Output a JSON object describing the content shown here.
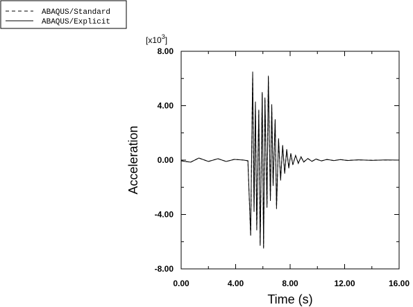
{
  "chart_data": {
    "type": "line",
    "xlabel": "Time (s)",
    "ylabel": "Acceleration",
    "y_multiplier_base": "[x10",
    "y_multiplier_exp": "3",
    "y_multiplier_close": "]",
    "xlim": [
      0,
      16
    ],
    "ylim": [
      -8,
      8
    ],
    "x_ticks": [
      0,
      4,
      8,
      12,
      16
    ],
    "x_tick_labels": [
      "0.00",
      "4.00",
      "8.00",
      "12.00",
      "16.00"
    ],
    "y_ticks": [
      8,
      4,
      0,
      -4,
      -8
    ],
    "y_tick_labels": [
      "8.00",
      "4.00",
      "0.00",
      "-4.00",
      "-8.00"
    ],
    "grid": false,
    "legend_position": "top-left",
    "series": [
      {
        "name": "ABAQUS/Standard",
        "style": "dashed",
        "x": [
          0,
          0.3,
          0.7,
          1.3,
          2.0,
          2.7,
          3.3,
          3.9,
          4.6,
          4.9,
          5.1,
          5.25,
          5.35,
          5.45,
          5.55,
          5.7,
          5.8,
          5.95,
          6.05,
          6.15,
          6.3,
          6.4,
          6.55,
          6.65,
          6.75,
          6.9,
          7.0,
          7.15,
          7.3,
          7.45,
          7.6,
          7.75,
          7.9,
          8.05,
          8.2,
          8.4,
          8.6,
          8.8,
          9.0,
          9.3,
          9.6,
          9.9,
          10.3,
          10.7,
          11.2,
          11.7,
          12.2,
          13.0,
          14.0,
          15.0,
          16.0
        ],
        "y": [
          -0.05,
          -0.1,
          -0.15,
          0.15,
          -0.1,
          0.1,
          -0.1,
          0.05,
          0.0,
          -0.05,
          -5.6,
          6.3,
          -3.6,
          4.1,
          -5.2,
          3.6,
          -6.3,
          4.9,
          -6.4,
          4.5,
          -3.5,
          6.1,
          -2.9,
          4.0,
          -1.8,
          2.9,
          -3.6,
          1.5,
          -1.4,
          1.0,
          -0.9,
          0.7,
          -0.5,
          0.4,
          -0.3,
          0.3,
          -0.2,
          0.2,
          -0.12,
          0.1,
          -0.08,
          0.06,
          -0.05,
          0.04,
          -0.03,
          0.03,
          -0.02,
          0.01,
          -0.01,
          0.0,
          0.0
        ]
      },
      {
        "name": "ABAQUS/Explicit",
        "style": "solid",
        "x": [
          0,
          0.3,
          0.7,
          1.3,
          2.0,
          2.7,
          3.3,
          3.9,
          4.6,
          4.9,
          5.1,
          5.25,
          5.35,
          5.45,
          5.55,
          5.7,
          5.8,
          5.95,
          6.05,
          6.15,
          6.3,
          6.4,
          6.55,
          6.65,
          6.75,
          6.9,
          7.0,
          7.15,
          7.3,
          7.45,
          7.6,
          7.75,
          7.9,
          8.05,
          8.2,
          8.4,
          8.6,
          8.8,
          9.0,
          9.3,
          9.6,
          9.9,
          10.3,
          10.7,
          11.2,
          11.7,
          12.2,
          13.0,
          14.0,
          15.0,
          16.0
        ],
        "y": [
          -0.05,
          -0.1,
          -0.15,
          0.15,
          -0.1,
          0.1,
          -0.1,
          0.05,
          0.0,
          -0.05,
          -5.5,
          6.5,
          -3.8,
          4.3,
          -5.0,
          3.7,
          -6.2,
          5.0,
          -6.5,
          4.6,
          -3.4,
          6.2,
          -3.0,
          4.1,
          -1.9,
          3.0,
          -3.5,
          1.6,
          -1.5,
          1.1,
          -1.0,
          0.8,
          -0.6,
          0.5,
          -0.35,
          0.35,
          -0.25,
          0.25,
          -0.15,
          0.12,
          -0.1,
          0.08,
          -0.06,
          0.05,
          -0.04,
          0.04,
          -0.03,
          0.02,
          -0.02,
          0.01,
          0.0
        ]
      }
    ]
  }
}
